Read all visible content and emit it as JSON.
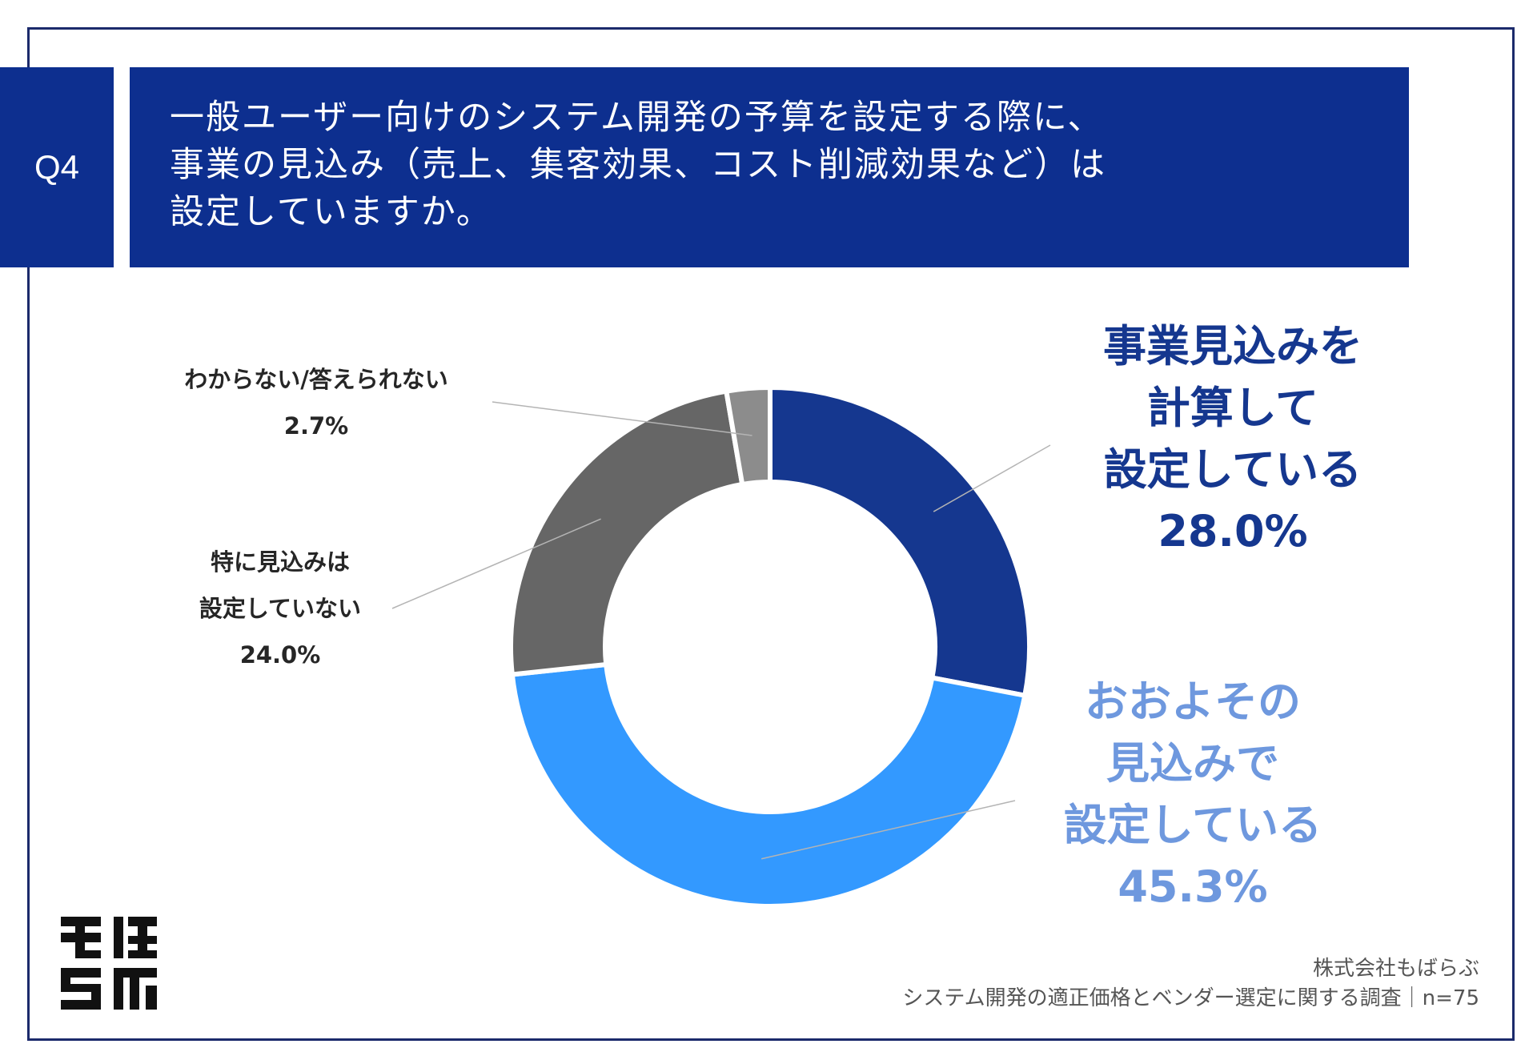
{
  "question": {
    "number": "Q4",
    "lines": [
      "一般ユーザー向けのシステム開発の予算を設定する際に、",
      "事業の見込み（売上、集客効果、コスト削減効果など）は",
      "設定していますか。"
    ]
  },
  "chart_data": {
    "type": "pie",
    "variant": "donut",
    "unit": "%",
    "slices": [
      {
        "label_lines": [
          "事業見込みを",
          "計算して",
          "設定している"
        ],
        "value": 28.0,
        "value_label": "28.0%",
        "color": "#15378f"
      },
      {
        "label_lines": [
          "おおよその",
          "見込みで",
          "設定している"
        ],
        "value": 45.3,
        "value_label": "45.3%",
        "color": "#3399ff"
      },
      {
        "label_lines": [
          "特に見込みは",
          "設定していない"
        ],
        "value": 24.0,
        "value_label": "24.0%",
        "color": "#666666"
      },
      {
        "label_lines": [
          "わからない/答えられない"
        ],
        "value": 2.7,
        "value_label": "2.7%",
        "color": "#8c8c8c"
      }
    ]
  },
  "footer": {
    "company": "株式会社もばらぶ",
    "survey": "システム開発の適正価格とベンダー選定に関する調査｜n=75"
  },
  "logo": {
    "text": "もばらぶ"
  }
}
